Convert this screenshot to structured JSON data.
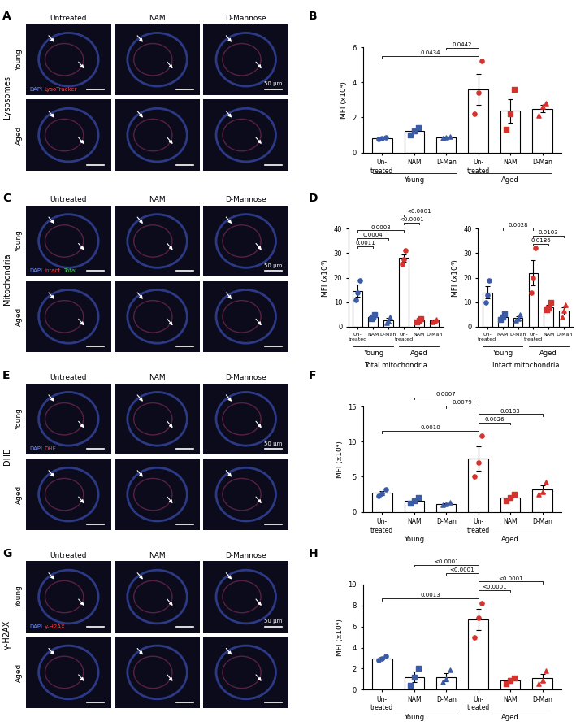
{
  "image_panels": [
    {
      "panel": "A",
      "title": "Lysosomes",
      "columns": [
        "Untreated",
        "NAM",
        "D-Mannose"
      ],
      "rows": [
        "Young",
        "Aged"
      ],
      "stains": [
        {
          "text": "DAPI",
          "color": "#6f8bff"
        },
        {
          "text": "LysoTracker",
          "color": "#ff4040"
        }
      ],
      "scale_bar": "50 µm"
    },
    {
      "panel": "C",
      "title": "Mitochondria",
      "columns": [
        "Untreated",
        "NAM",
        "D-Mannose"
      ],
      "rows": [
        "Young",
        "Aged"
      ],
      "stains": [
        {
          "text": "DAPI",
          "color": "#6f8bff"
        },
        {
          "text": "Intact",
          "color": "#ff4040"
        },
        {
          "text": "Total",
          "color": "#3ddc3d"
        }
      ],
      "scale_bar": "50 µm"
    },
    {
      "panel": "E",
      "title": "DHE",
      "columns": [
        "Untreated",
        "NAM",
        "D-Mannose"
      ],
      "rows": [
        "Young",
        "Aged"
      ],
      "stains": [
        {
          "text": "DAPI",
          "color": "#6f8bff"
        },
        {
          "text": "DHE",
          "color": "#ff4040"
        }
      ],
      "scale_bar": "50 µm"
    },
    {
      "panel": "G",
      "title": "γ-H2AX",
      "columns": [
        "Untreated",
        "NAM",
        "D-Mannose"
      ],
      "rows": [
        "Young",
        "Aged"
      ],
      "stains": [
        {
          "text": "DAPI",
          "color": "#6f8bff"
        },
        {
          "text": "γ-H2AX",
          "color": "#ff4040"
        }
      ],
      "scale_bar": "50 µm"
    }
  ],
  "chart_data": [
    {
      "type": "bar",
      "panel": "B",
      "ylabel": "MFI (x10⁴)",
      "categories": [
        "Un-\ntreated",
        "NAM",
        "D-Man",
        "Un-\ntreated",
        "NAM",
        "D-Man"
      ],
      "groups": [
        "Young",
        "Young",
        "Young",
        "Aged",
        "Aged",
        "Aged"
      ],
      "colors": [
        "#3b5ba5",
        "#3b5ba5",
        "#3b5ba5",
        "#d6322d",
        "#d6322d",
        "#d6322d"
      ],
      "markers": [
        "o",
        "s",
        "^",
        "o",
        "s",
        "^"
      ],
      "values": [
        0.81,
        1.22,
        0.86,
        3.6,
        2.37,
        2.5
      ],
      "errors": [
        0.04,
        0.12,
        0.04,
        0.88,
        0.67,
        0.21
      ],
      "points": [
        [
          0.75,
          0.8,
          0.88
        ],
        [
          1.0,
          1.25,
          1.4
        ],
        [
          0.8,
          0.85,
          0.92
        ],
        [
          2.2,
          3.4,
          5.2
        ],
        [
          1.3,
          2.2,
          3.6
        ],
        [
          2.1,
          2.6,
          2.8
        ]
      ],
      "ylim": [
        0,
        6
      ],
      "yticks": [
        0,
        2,
        4,
        6
      ],
      "comparisons": [
        {
          "from": 0,
          "to": 3,
          "label": "0.0434"
        },
        {
          "from": 2,
          "to": 3,
          "label": "0.0442"
        }
      ]
    },
    {
      "type": "bar",
      "panel": "D",
      "ylabel": "MFI (x10⁴)",
      "xlabel": "Total mitochondria",
      "categories": [
        "Un-\ntreated",
        "NAM",
        "D-Man",
        "Un-\ntreated",
        "NAM",
        "D-Man"
      ],
      "groups": [
        "Young",
        "Young",
        "Young",
        "Aged",
        "Aged",
        "Aged"
      ],
      "colors": [
        "#3b5ba5",
        "#3b5ba5",
        "#3b5ba5",
        "#d6322d",
        "#d6322d",
        "#d6322d"
      ],
      "markers": [
        "o",
        "s",
        "^",
        "o",
        "s",
        "^"
      ],
      "values": [
        14.7,
        4.0,
        2.6,
        28.0,
        2.6,
        2.5
      ],
      "errors": [
        2.4,
        0.5,
        0.9,
        1.6,
        0.4,
        0.4
      ],
      "points": [
        [
          11,
          14,
          19
        ],
        [
          3.3,
          4,
          4.8
        ],
        [
          1.5,
          2.3,
          4
        ],
        [
          25.5,
          27.5,
          31
        ],
        [
          2,
          2.5,
          3.2
        ],
        [
          2,
          2.4,
          3
        ]
      ],
      "ylim": [
        0,
        40
      ],
      "yticks": [
        0,
        10,
        20,
        30,
        40
      ],
      "comparisons": [
        {
          "from": 0,
          "to": 1,
          "label": "0.0011"
        },
        {
          "from": 0,
          "to": 2,
          "label": "0.0004"
        },
        {
          "from": 0,
          "to": 3,
          "label": "0.0003"
        },
        {
          "from": 3,
          "to": 4,
          "label": "<0.0001"
        },
        {
          "from": 3,
          "to": 5,
          "label": "<0.0001"
        }
      ]
    },
    {
      "type": "bar",
      "ylabel": "MFI (x10⁴)",
      "xlabel": "Intact mitochondria",
      "categories": [
        "Un-\ntreated",
        "NAM",
        "D-Man",
        "Un-\ntreated",
        "NAM",
        "D-Man"
      ],
      "groups": [
        "Young",
        "Young",
        "Young",
        "Aged",
        "Aged",
        "Aged"
      ],
      "colors": [
        "#3b5ba5",
        "#3b5ba5",
        "#3b5ba5",
        "#d6322d",
        "#d6322d",
        "#d6322d"
      ],
      "markers": [
        "o",
        "s",
        "^",
        "o",
        "s",
        "^"
      ],
      "values": [
        14.0,
        4.0,
        3.5,
        22.0,
        8.0,
        6.5
      ],
      "errors": [
        2.5,
        0.8,
        0.8,
        5.0,
        1.0,
        1.5
      ],
      "points": [
        [
          10,
          13,
          19
        ],
        [
          3,
          3.8,
          5.4
        ],
        [
          2.5,
          3.2,
          5
        ],
        [
          14,
          20,
          32
        ],
        [
          7,
          7.5,
          9.8
        ],
        [
          4,
          6.5,
          9
        ]
      ],
      "ylim": [
        0,
        40
      ],
      "yticks": [
        0,
        10,
        20,
        30,
        40
      ],
      "comparisons": [
        {
          "from": 3,
          "to": 4,
          "label": "0.0186"
        },
        {
          "from": 3,
          "to": 5,
          "label": "0.0103"
        },
        {
          "from": 1,
          "to": 3,
          "label": "0.0028"
        }
      ]
    },
    {
      "type": "bar",
      "panel": "F",
      "ylabel": "MFI (x10⁴)",
      "categories": [
        "Un-\ntreated",
        "NAM",
        "D-Man",
        "Un-\ntreated",
        "NAM",
        "D-Man"
      ],
      "groups": [
        "Young",
        "Young",
        "Young",
        "Aged",
        "Aged",
        "Aged"
      ],
      "colors": [
        "#3b5ba5",
        "#3b5ba5",
        "#3b5ba5",
        "#d6322d",
        "#d6322d",
        "#d6322d"
      ],
      "markers": [
        "o",
        "s",
        "^",
        "o",
        "s",
        "^"
      ],
      "values": [
        2.7,
        1.6,
        1.1,
        7.6,
        2.0,
        3.2
      ],
      "errors": [
        0.3,
        0.25,
        0.1,
        1.7,
        0.3,
        0.6
      ],
      "points": [
        [
          2.3,
          2.6,
          3.2
        ],
        [
          1.2,
          1.6,
          2.0
        ],
        [
          1.0,
          1.1,
          1.3
        ],
        [
          5,
          7,
          10.8
        ],
        [
          1.6,
          2,
          2.5
        ],
        [
          2.5,
          2.9,
          4.2
        ]
      ],
      "ylim": [
        0,
        15
      ],
      "yticks": [
        0,
        5,
        10,
        15
      ],
      "comparisons": [
        {
          "from": 0,
          "to": 3,
          "label": "0.0010"
        },
        {
          "from": 3,
          "to": 4,
          "label": "0.0026"
        },
        {
          "from": 3,
          "to": 5,
          "label": "0.0183"
        },
        {
          "from": 2,
          "to": 3,
          "label": "0.0079"
        },
        {
          "from": 1,
          "to": 3,
          "label": "0.0007"
        }
      ]
    },
    {
      "type": "bar",
      "panel": "H",
      "ylabel": "MFI (x10⁴)",
      "categories": [
        "Un-\ntreated",
        "NAM",
        "D-Man",
        "Un-\ntreated",
        "NAM",
        "D-Man"
      ],
      "groups": [
        "Young",
        "Young",
        "Young",
        "Aged",
        "Aged",
        "Aged"
      ],
      "colors": [
        "#3b5ba5",
        "#3b5ba5",
        "#3b5ba5",
        "#d6322d",
        "#d6322d",
        "#d6322d"
      ],
      "markers": [
        "o",
        "s",
        "^",
        "o",
        "s",
        "^"
      ],
      "values": [
        3.0,
        1.2,
        1.2,
        6.7,
        0.9,
        1.1
      ],
      "errors": [
        0.15,
        0.5,
        0.4,
        1.0,
        0.2,
        0.4
      ],
      "points": [
        [
          2.8,
          3.0,
          3.2
        ],
        [
          0.4,
          1.2,
          2.0
        ],
        [
          0.7,
          1.0,
          1.9
        ],
        [
          5,
          6.8,
          8.2
        ],
        [
          0.6,
          0.9,
          1.1
        ],
        [
          0.6,
          0.9,
          1.8
        ]
      ],
      "ylim": [
        0,
        10
      ],
      "yticks": [
        0,
        2,
        4,
        6,
        8,
        10
      ],
      "comparisons": [
        {
          "from": 0,
          "to": 3,
          "label": "0.0013"
        },
        {
          "from": 3,
          "to": 4,
          "label": "<0.0001"
        },
        {
          "from": 3,
          "to": 5,
          "label": "<0.0001"
        },
        {
          "from": 2,
          "to": 3,
          "label": "<0.0001"
        },
        {
          "from": 1,
          "to": 3,
          "label": "<0.0001"
        }
      ]
    }
  ]
}
